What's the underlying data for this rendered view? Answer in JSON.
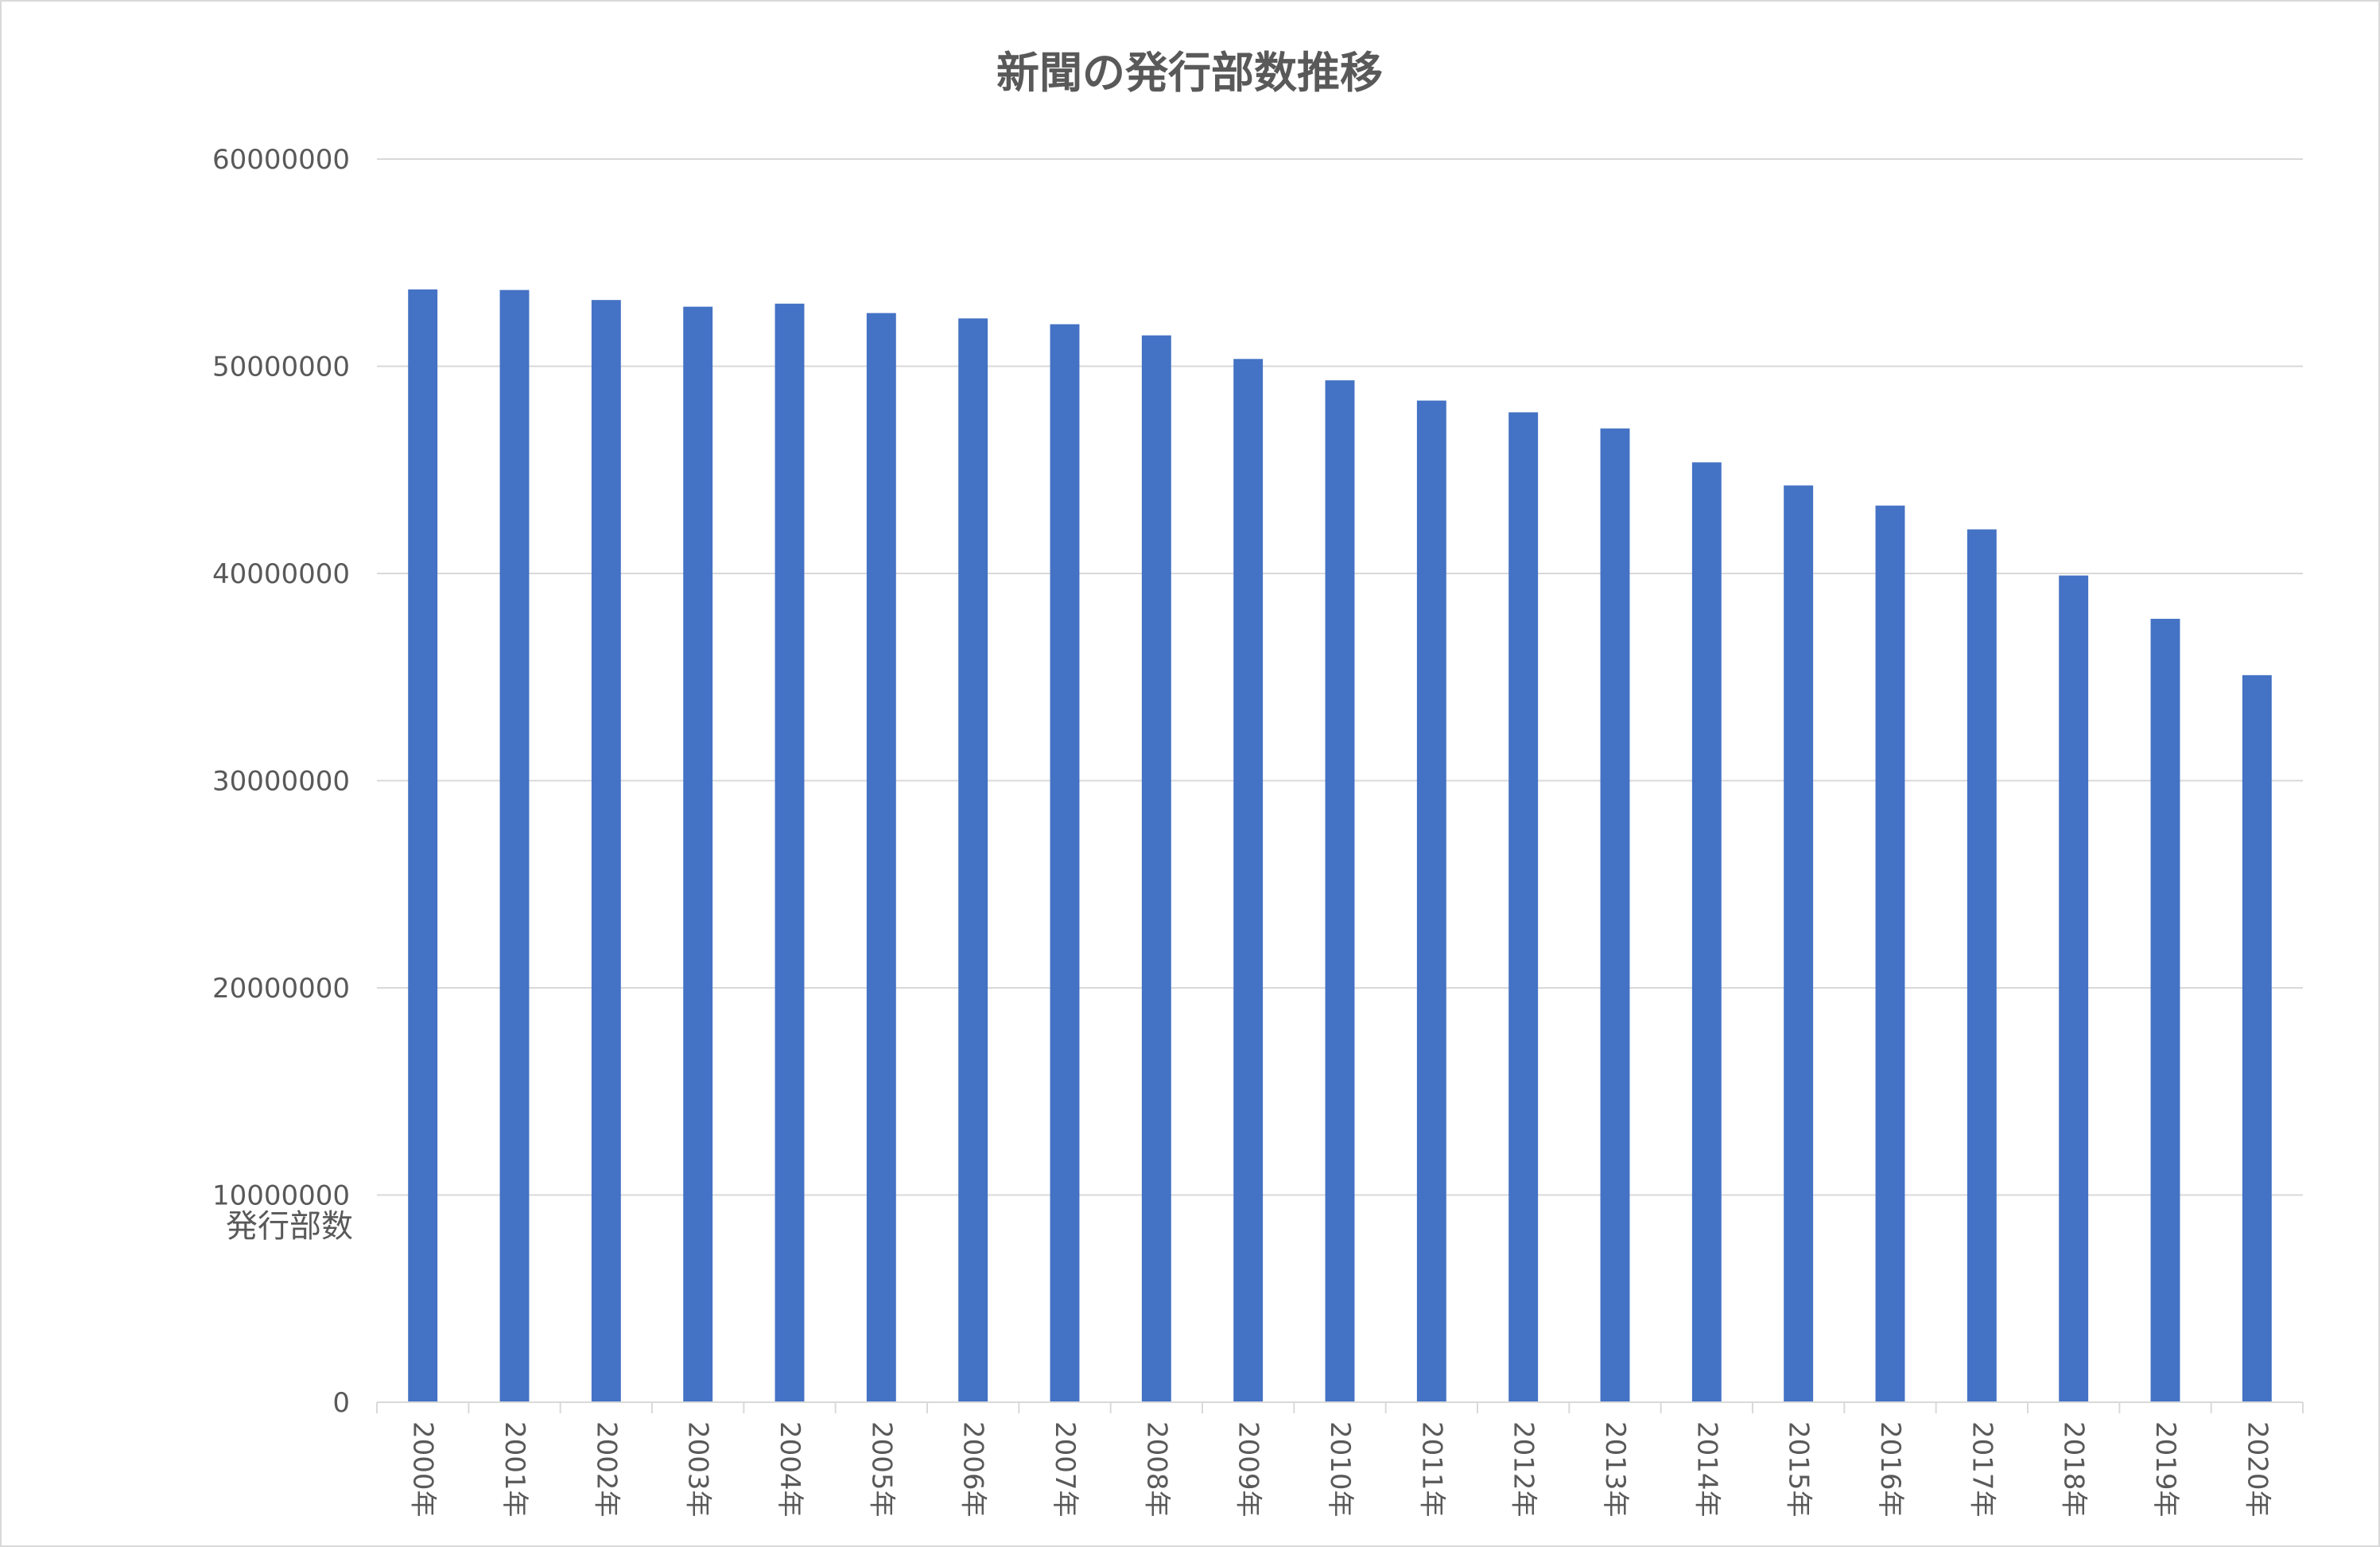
{
  "chart_data": {
    "type": "bar",
    "title": "新聞の発行部数推移",
    "ylabel": "発行部数",
    "xlabel": "",
    "ylim": [
      0,
      60000000
    ],
    "yticks": [
      0,
      10000000,
      20000000,
      30000000,
      40000000,
      50000000,
      60000000
    ],
    "grid": true,
    "legend": "none",
    "categories": [
      "2000年",
      "2001年",
      "2002年",
      "2003年",
      "2004年",
      "2005年",
      "2006年",
      "2007年",
      "2008年",
      "2009年",
      "2010年",
      "2011年",
      "2012年",
      "2013年",
      "2014年",
      "2015年",
      "2016年",
      "2017年",
      "2018年",
      "2019年",
      "2020年"
    ],
    "values": [
      53709000,
      53681000,
      53198000,
      52875000,
      53022000,
      52568000,
      52310000,
      52029000,
      51491000,
      50353000,
      49322000,
      48345000,
      47778000,
      47000000,
      45363000,
      44247000,
      43276000,
      42128000,
      39901000,
      37811000,
      35092000
    ],
    "bar_color": "#4472c4"
  }
}
